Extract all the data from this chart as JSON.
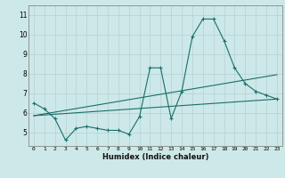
{
  "xlabel": "Humidex (Indice chaleur)",
  "background_color": "#cde8e8",
  "grid_color": "#b8d4d4",
  "line_color": "#1a6e6a",
  "x_ticks": [
    0,
    1,
    2,
    3,
    4,
    5,
    6,
    7,
    8,
    9,
    10,
    11,
    12,
    13,
    14,
    15,
    16,
    17,
    18,
    19,
    20,
    21,
    22,
    23
  ],
  "y_ticks": [
    5,
    6,
    7,
    8,
    9,
    10,
    11
  ],
  "ylim": [
    4.3,
    11.5
  ],
  "xlim": [
    -0.5,
    23.5
  ],
  "series1_x": [
    0,
    1,
    2,
    3,
    4,
    5,
    6,
    7,
    8,
    9,
    10,
    11,
    12,
    13,
    14,
    15,
    16,
    17,
    18,
    19,
    20,
    21,
    22,
    23
  ],
  "series1_y": [
    6.5,
    6.2,
    5.7,
    4.6,
    5.2,
    5.3,
    5.2,
    5.1,
    5.1,
    4.9,
    5.8,
    8.3,
    8.3,
    5.7,
    7.1,
    9.9,
    10.8,
    10.8,
    9.7,
    8.3,
    7.5,
    7.1,
    6.9,
    6.7
  ],
  "series2_x": [
    0,
    23
  ],
  "series2_y": [
    5.85,
    6.7
  ],
  "series3_x": [
    0,
    23
  ],
  "series3_y": [
    5.85,
    7.95
  ]
}
